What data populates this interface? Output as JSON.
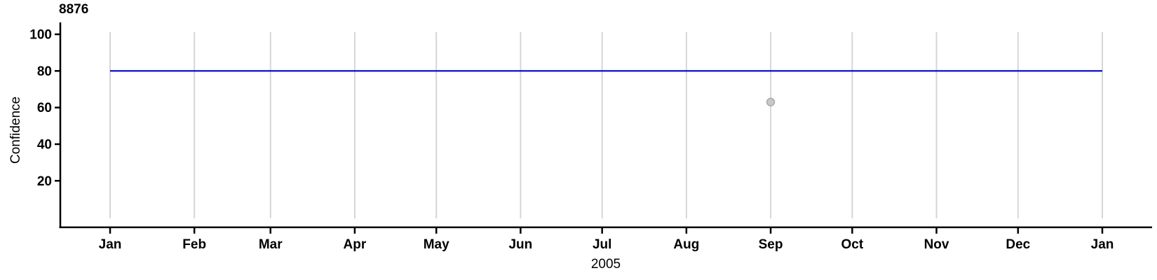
{
  "chart_data": {
    "type": "line",
    "title": "8876",
    "ylabel": "Confidence",
    "xlabel": "2005",
    "x_axis": {
      "range": [
        "2005-01-01",
        "2006-01-01"
      ],
      "tick_dates": [
        "2005-01-01",
        "2005-02-01",
        "2005-03-01",
        "2005-04-01",
        "2005-05-01",
        "2005-06-01",
        "2005-07-01",
        "2005-08-01",
        "2005-09-01",
        "2005-10-01",
        "2005-11-01",
        "2005-12-01",
        "2006-01-01"
      ],
      "tick_labels": [
        "Jan",
        "Feb",
        "Mar",
        "Apr",
        "May",
        "Jun",
        "Jul",
        "Aug",
        "Sep",
        "Oct",
        "Nov",
        "Dec",
        "Jan"
      ],
      "grid": true
    },
    "y_axis": {
      "ticks": [
        20,
        40,
        60,
        80,
        100
      ],
      "tick_labels": [
        "20",
        "40",
        "60",
        "80",
        "100"
      ],
      "range": [
        0,
        101
      ],
      "grid": false
    },
    "series": [
      {
        "name": "confidence-line",
        "type": "line",
        "color": "#0000cc",
        "points": [
          {
            "date": "2005-01-01",
            "value": 80
          },
          {
            "date": "2006-01-01",
            "value": 80
          }
        ]
      }
    ],
    "points": [
      {
        "date": "2005-09-01",
        "value": 63,
        "fill": "#c8c8c8",
        "stroke": "#9e9e9e"
      }
    ],
    "colors": {
      "axis": "#000000",
      "grid": "#d6d6d6",
      "line": "#0000cc",
      "point_fill": "#c8c8c8",
      "point_stroke": "#9e9e9e"
    },
    "legend": null
  }
}
